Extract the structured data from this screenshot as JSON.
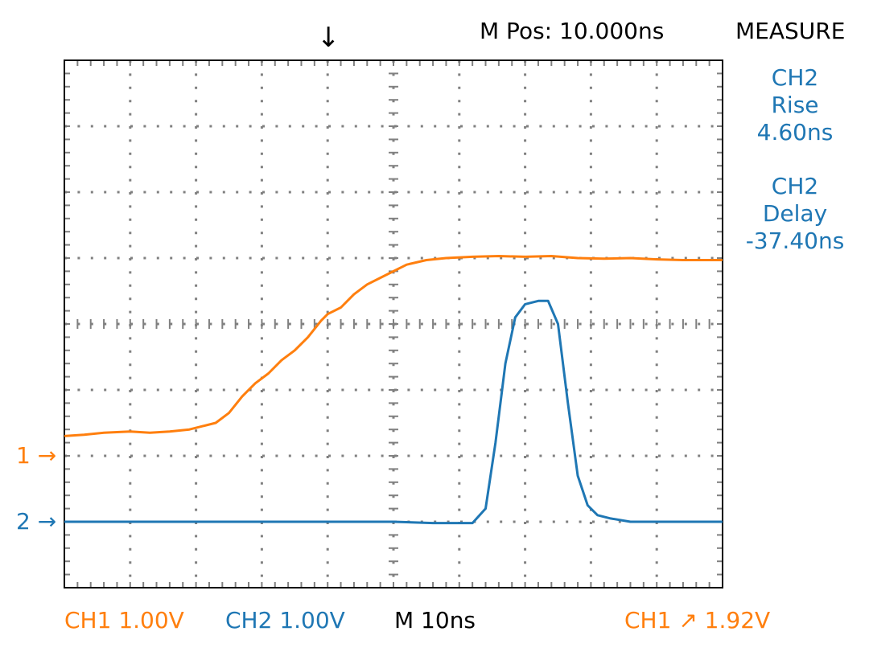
{
  "header": {
    "mpos": "M Pos: 10.000ns",
    "menu": "MEASURE"
  },
  "measure": [
    {
      "channel": "CH2",
      "type": "Rise",
      "value": "4.60ns"
    },
    {
      "channel": "CH2",
      "type": "Delay",
      "value": "-37.40ns"
    }
  ],
  "markers": {
    "ch1": "1 →",
    "ch2": "2 →",
    "trigger": "↓"
  },
  "footer": {
    "ch1_scale": "CH1 1.00V",
    "ch2_scale": "CH2 1.00V",
    "timebase": "M 10ns",
    "trigger": "CH1 ↗ 1.92V"
  },
  "colors": {
    "ch1": "#ff7f0e",
    "ch2": "#1f77b4",
    "grid": "#808080",
    "text": "#000000"
  },
  "chart_data": {
    "type": "line",
    "xlabel": "",
    "ylabel": "",
    "x_range_div": [
      0,
      10
    ],
    "y_range_div": [
      -4,
      4
    ],
    "grid": true,
    "series": [
      {
        "name": "CH1",
        "color": "#ff7f0e",
        "x": [
          0,
          0.3,
          0.6,
          1.0,
          1.3,
          1.6,
          1.9,
          2.1,
          2.3,
          2.5,
          2.7,
          2.9,
          3.1,
          3.3,
          3.5,
          3.7,
          3.9,
          4.0,
          4.2,
          4.4,
          4.6,
          4.8,
          5.0,
          5.2,
          5.5,
          5.8,
          6.2,
          6.6,
          7.0,
          7.4,
          7.8,
          8.2,
          8.6,
          9.0,
          9.4,
          10.0
        ],
        "y": [
          -1.7,
          -1.68,
          -1.65,
          -1.63,
          -1.65,
          -1.63,
          -1.6,
          -1.55,
          -1.5,
          -1.35,
          -1.1,
          -0.9,
          -0.75,
          -0.55,
          -0.4,
          -0.2,
          0.05,
          0.15,
          0.25,
          0.45,
          0.6,
          0.7,
          0.8,
          0.9,
          0.97,
          1.0,
          1.02,
          1.03,
          1.02,
          1.03,
          1.0,
          0.99,
          1.0,
          0.98,
          0.97,
          0.97
        ]
      },
      {
        "name": "CH2",
        "color": "#1f77b4",
        "x": [
          0,
          1,
          2,
          3,
          4,
          5,
          5.6,
          6.2,
          6.4,
          6.55,
          6.7,
          6.85,
          7.0,
          7.2,
          7.35,
          7.5,
          7.65,
          7.8,
          7.95,
          8.1,
          8.3,
          8.6,
          9.0,
          9.5,
          10.0
        ],
        "y": [
          -3.0,
          -3.0,
          -3.0,
          -3.0,
          -3.0,
          -3.0,
          -3.02,
          -3.02,
          -2.8,
          -1.8,
          -0.6,
          0.1,
          0.3,
          0.35,
          0.35,
          0.0,
          -1.2,
          -2.3,
          -2.75,
          -2.9,
          -2.95,
          -3.0,
          -3.0,
          -3.0,
          -3.0
        ]
      }
    ]
  }
}
